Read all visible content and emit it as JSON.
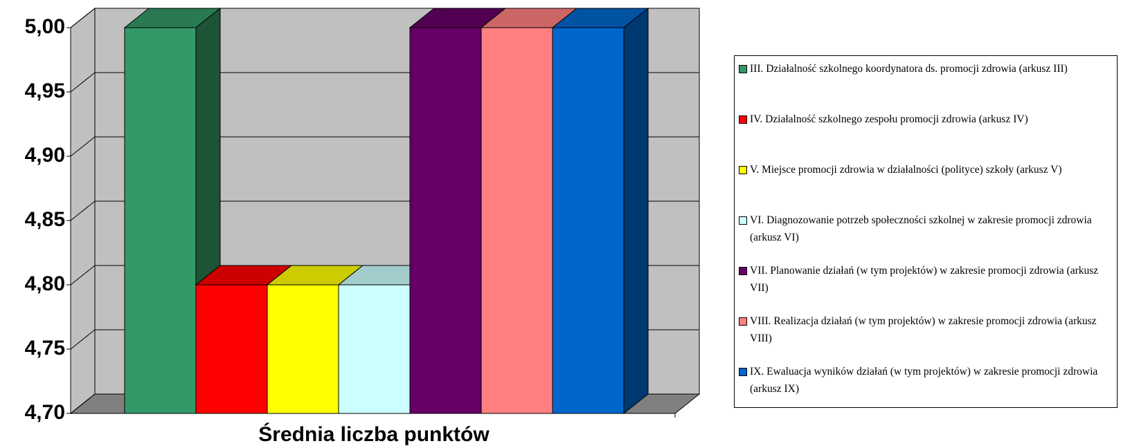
{
  "chart_data": {
    "type": "bar3d",
    "categories": [
      "Średnia liczba punktów"
    ],
    "series": [
      {
        "name": "III. Działalność szkolnego koordynatora ds. promocji zdrowia (arkusz III)",
        "color": "#339966",
        "values": [
          5.0
        ]
      },
      {
        "name": "IV. Działalność szkolnego zespołu promocji zdrowia (arkusz IV)",
        "color": "#ff0000",
        "values": [
          4.8
        ]
      },
      {
        "name": "V. Miejsce promocji zdrowia w działalności (polityce) szkoły (arkusz V)",
        "color": "#ffff00",
        "values": [
          4.8
        ]
      },
      {
        "name": "VI. Diagnozowanie potrzeb społeczności szkolnej w zakresie promocji zdrowia (arkusz VI)",
        "color": "#ccffff",
        "values": [
          4.8
        ]
      },
      {
        "name": "VII. Planowanie działań (w tym projektów) w zakresie promocji zdrowia (arkusz VII)",
        "color": "#660066",
        "values": [
          5.0
        ]
      },
      {
        "name": "VIII. Realizacja działań (w tym projektów) w zakresie promocji zdrowia (arkusz VIII)",
        "color": "#ff8080",
        "values": [
          5.0
        ]
      },
      {
        "name": "IX. Ewaluacja wyników działań (w tym projektów) w zakresie promocji zdrowia (arkusz IX)",
        "color": "#0066cc",
        "values": [
          5.0
        ]
      }
    ],
    "ylim": [
      4.7,
      5.0
    ],
    "yticks": [
      {
        "value": 4.7,
        "label": "4,70"
      },
      {
        "value": 4.75,
        "label": "4,75"
      },
      {
        "value": 4.8,
        "label": "4,80"
      },
      {
        "value": 4.85,
        "label": "4,85"
      },
      {
        "value": 4.9,
        "label": "4,90"
      },
      {
        "value": 4.95,
        "label": "4,95"
      },
      {
        "value": 5.0,
        "label": "5,00"
      }
    ],
    "grid": true
  }
}
